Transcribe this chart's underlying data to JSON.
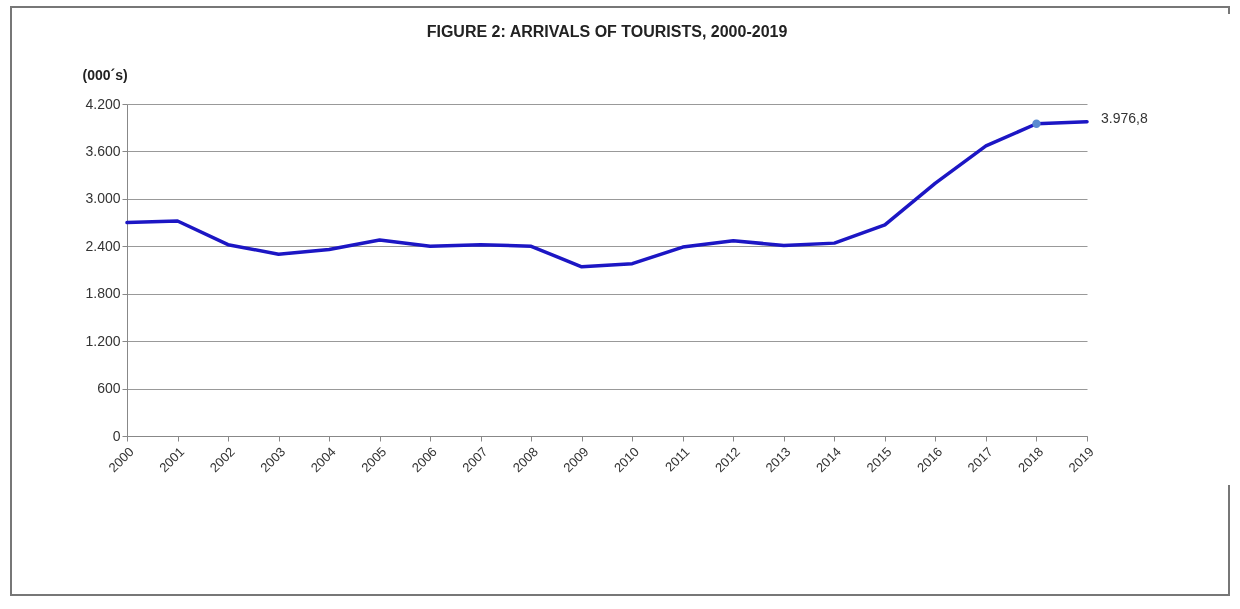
{
  "chart_data": {
    "type": "line",
    "title": "FIGURE 2: ARRIVALS OF TOURISTS, 2000-2019",
    "ylabel": "(000´s)",
    "categories": [
      "2000",
      "2001",
      "2002",
      "2003",
      "2004",
      "2005",
      "2006",
      "2007",
      "2008",
      "2009",
      "2010",
      "2011",
      "2012",
      "2013",
      "2014",
      "2015",
      "2016",
      "2017",
      "2018",
      "2019"
    ],
    "series": [
      {
        "color": "#1c16c4",
        "values": [
          2700,
          2720,
          2420,
          2300,
          2360,
          2480,
          2400,
          2420,
          2400,
          2140,
          2180,
          2390,
          2470,
          2410,
          2440,
          2670,
          3200,
          3670,
          3950,
          3976.8
        ],
        "value_labels": [
          null,
          null,
          null,
          null,
          null,
          null,
          null,
          null,
          null,
          null,
          null,
          null,
          null,
          null,
          null,
          null,
          null,
          null,
          null,
          "3.976,8"
        ]
      },
      {
        "type": "scatter",
        "color": "#5b8bd0",
        "values": [
          null,
          null,
          null,
          null,
          null,
          null,
          null,
          null,
          null,
          null,
          null,
          null,
          null,
          null,
          null,
          null,
          null,
          null,
          3950,
          null
        ],
        "marker": "circle"
      }
    ],
    "ylim": [
      0,
      4200
    ],
    "yticks": [
      0,
      600,
      {
        "value": 1200,
        "label": "1.200"
      },
      {
        "value": 1800,
        "label": "1.800"
      },
      {
        "value": 2400,
        "label": "2.400"
      },
      {
        "value": 3000,
        "label": "3.000"
      },
      {
        "value": 3600,
        "label": "3.600"
      },
      {
        "value": 4200,
        "label": "4.200"
      }
    ],
    "grid": "y",
    "line_style": "solid"
  }
}
